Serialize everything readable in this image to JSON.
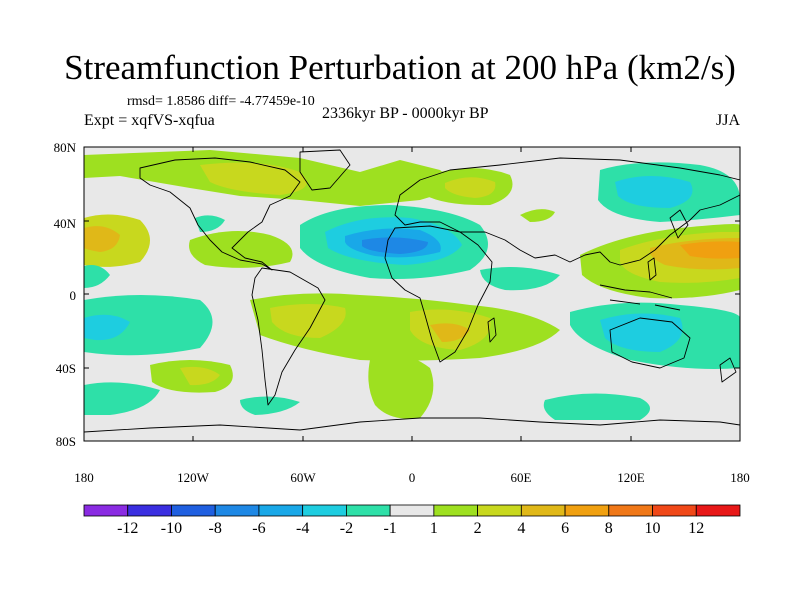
{
  "title": "Streamfunction Perturbation at 200 hPa (km2/s)",
  "stats": "rmsd= 1.8586 diff= -4.77459e-10",
  "expt": "Expt = xqfVS-xqfua",
  "period": "2336kyr BP - 0000kyr BP",
  "season": "JJA",
  "lat_labels": [
    "80N",
    "40N",
    "0",
    "40S",
    "80S"
  ],
  "lon_labels": [
    "180",
    "120W",
    "60W",
    "0",
    "60E",
    "120E",
    "180"
  ],
  "colorbar": {
    "labels": [
      "-12",
      "-10",
      "-8",
      "-6",
      "-4",
      "-2",
      "-1",
      "1",
      "2",
      "4",
      "6",
      "8",
      "10",
      "12"
    ],
    "colors": [
      "#8a2be2",
      "#3a2ee0",
      "#1f5fe0",
      "#1e88e5",
      "#19a8e8",
      "#1ecde0",
      "#2ee0a8",
      "#e8e8e8",
      "#9ee020",
      "#c8d81e",
      "#e0b818",
      "#f0a010",
      "#f07818",
      "#f04818",
      "#e81818"
    ]
  },
  "colors": {
    "land": "#e8e8e8",
    "coast": "#000000"
  }
}
